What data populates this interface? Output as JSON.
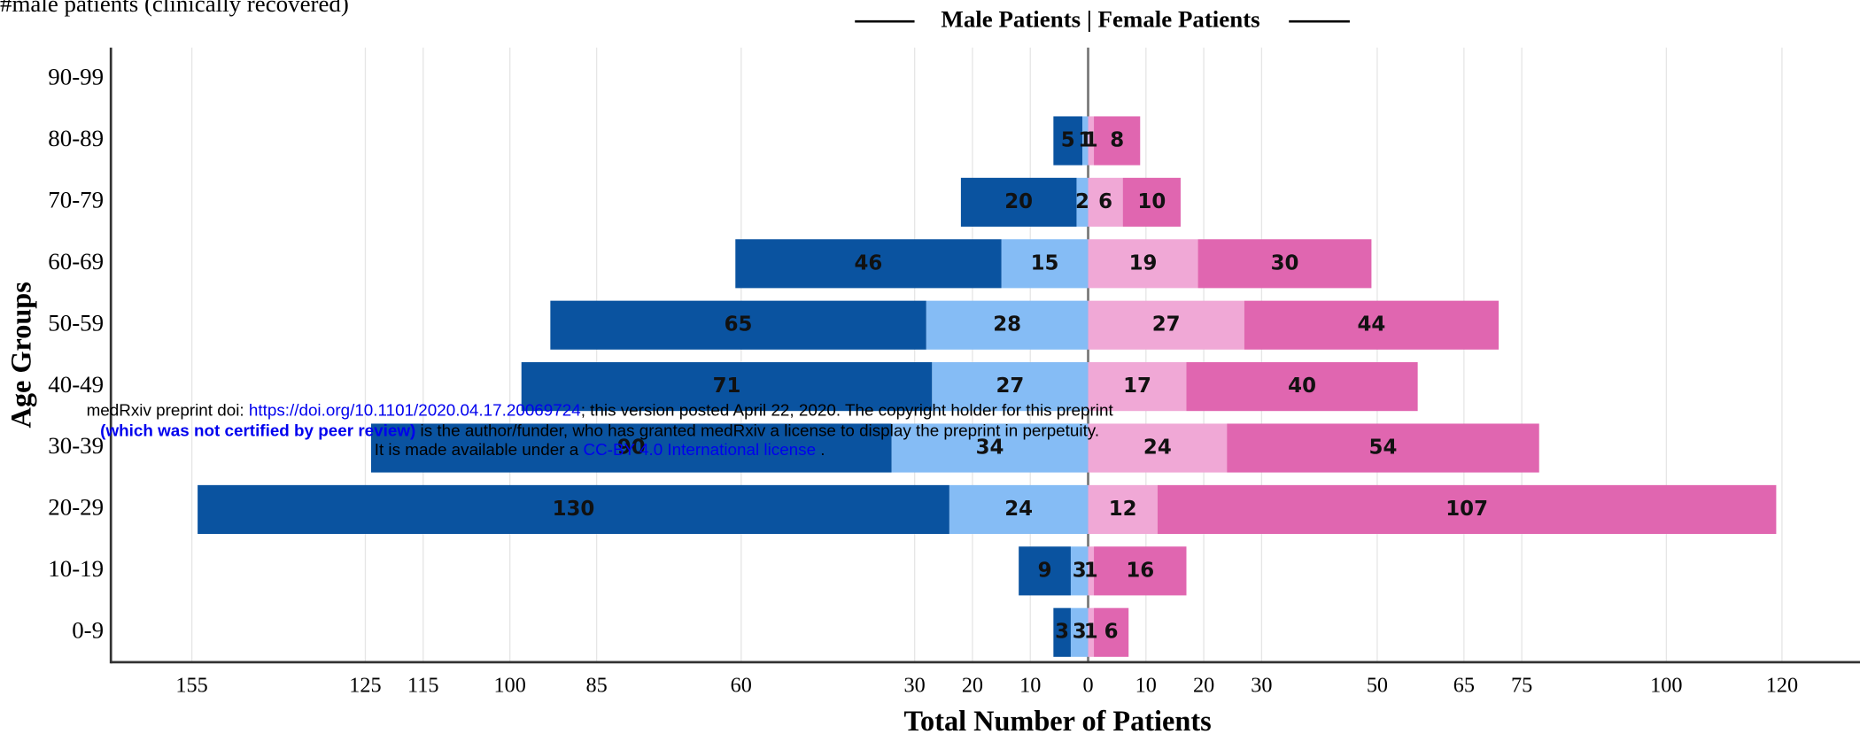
{
  "chart_data": {
    "type": "pyramid",
    "annotation": "#male patients (clinically recovered)",
    "title": "Male Patients | Female Patients",
    "x_label": "Total Number of Patients",
    "y_label": "Age Groups",
    "categories": [
      "0-9",
      "10-19",
      "20-29",
      "30-39",
      "40-49",
      "50-59",
      "60-69",
      "70-79",
      "80-89",
      "90-99"
    ],
    "series": [
      {
        "side": "left",
        "color": "#85bcf5",
        "values": [
          3,
          3,
          24,
          34,
          27,
          28,
          15,
          2,
          1,
          null
        ]
      },
      {
        "side": "left",
        "color": "#0a53a0",
        "values": [
          3,
          9,
          130,
          90,
          71,
          65,
          46,
          20,
          5,
          null
        ]
      },
      {
        "side": "right",
        "color": "#f0a8d6",
        "values": [
          1,
          1,
          12,
          24,
          17,
          27,
          19,
          6,
          1,
          null
        ]
      },
      {
        "side": "right",
        "color": "#e066b0",
        "values": [
          6,
          16,
          107,
          54,
          40,
          44,
          30,
          10,
          8,
          null
        ]
      }
    ],
    "xlim": [
      -169,
      133.5
    ],
    "xticks": [
      {
        "value": -155,
        "label": "155"
      },
      {
        "value": -125,
        "label": "125"
      },
      {
        "value": -115,
        "label": "115"
      },
      {
        "value": -100,
        "label": "100"
      },
      {
        "value": -85,
        "label": "85"
      },
      {
        "value": -60,
        "label": "60"
      },
      {
        "value": -30,
        "label": "30"
      },
      {
        "value": -20,
        "label": "20"
      },
      {
        "value": -10,
        "label": "10"
      },
      0,
      10,
      20,
      30,
      50,
      65,
      75,
      100,
      120
    ],
    "grid": true
  },
  "watermark": {
    "line1": [
      "medRxiv preprint doi: ",
      "https://doi.org/10.1101/2020.04.17.20069724",
      "; this version posted April 22, 2020. The copyright holder for this preprint"
    ],
    "line2": [
      "(which was not certified by peer review)",
      " is the author/funder, who has granted medRxiv a license to display the preprint in perpetuity."
    ],
    "line3": [
      "It is made available under a ",
      "CC-BY 4.0 International license",
      " ."
    ]
  }
}
